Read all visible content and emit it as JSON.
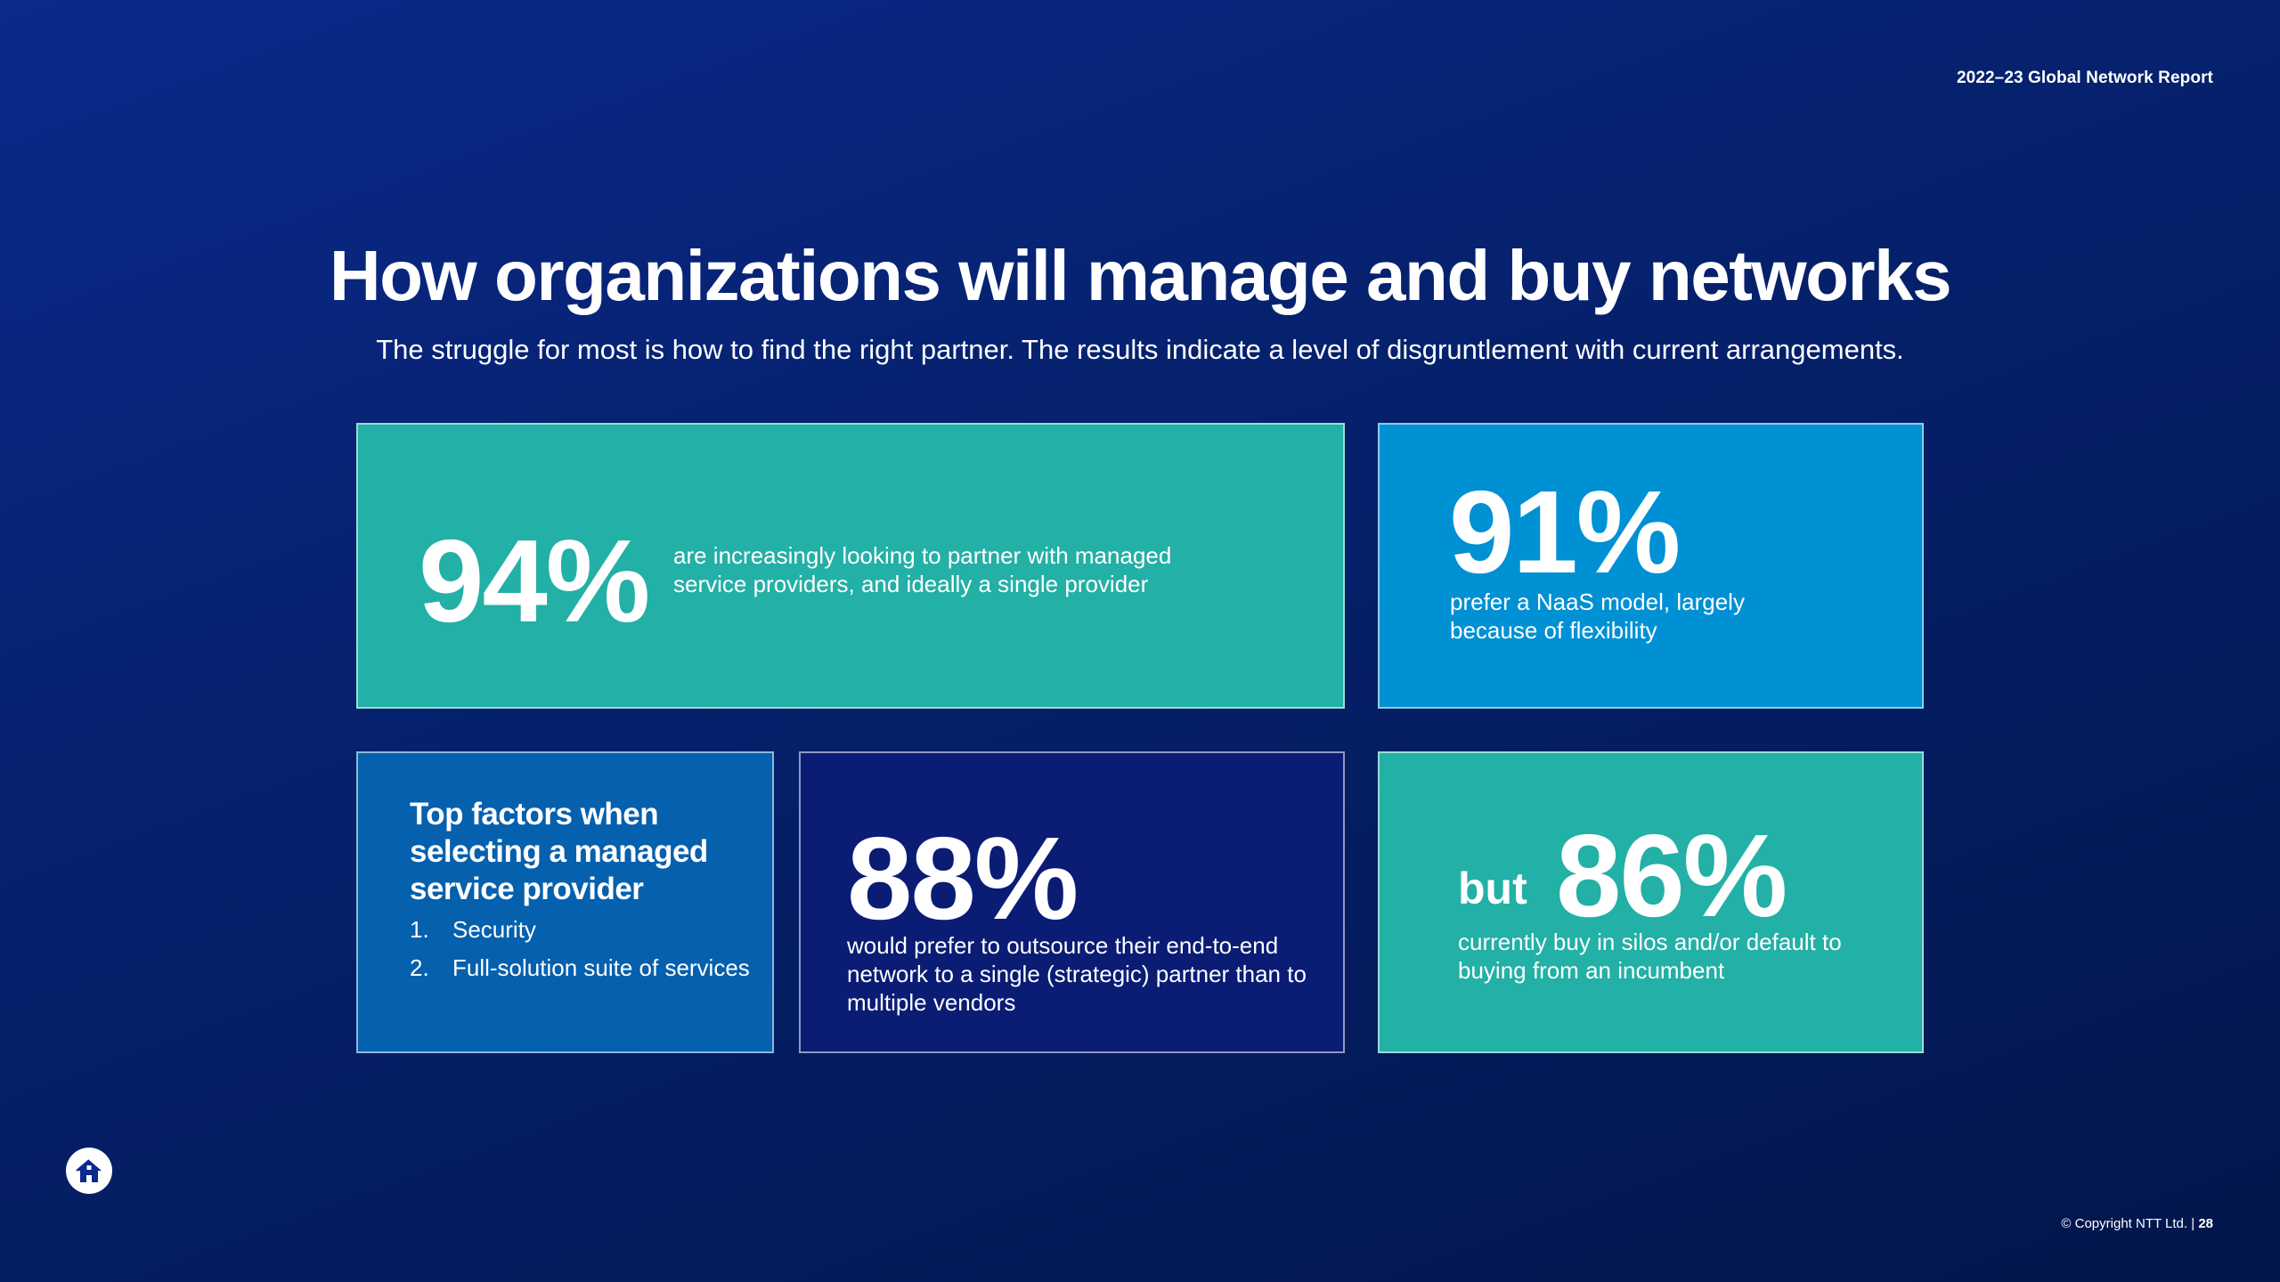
{
  "header": {
    "report_label": "2022–23 Global Network Report",
    "title": "How organizations will manage and buy networks",
    "subtitle": "The struggle for most is how to find the right partner. The results indicate a level of disgruntlement with current arrangements."
  },
  "cards": {
    "stat_94": {
      "value": "94%",
      "text": "are increasingly looking to partner with managed service providers, and ideally a single provider"
    },
    "stat_91": {
      "value": "91%",
      "text": "prefer a NaaS model, largely because of flexibility"
    },
    "factors": {
      "heading": "Top factors when selecting a managed service provider",
      "items": [
        {
          "num": "1.",
          "label": "Security"
        },
        {
          "num": "2.",
          "label": "Full-solution suite of services"
        }
      ]
    },
    "stat_88": {
      "value": "88%",
      "text": "would prefer to outsource their end-to-end network to a single (strategic) partner than to multiple vendors"
    },
    "stat_86": {
      "prefix": "but",
      "value": "86%",
      "text": "currently buy in silos and/or default to buying from an incumbent"
    }
  },
  "footer": {
    "copyright": "© Copyright NTT Ltd. |",
    "page_number": "28",
    "home_icon": "home-icon"
  },
  "colors": {
    "background": "#062270",
    "teal": "#23b0a6",
    "bright_blue": "#0090d4",
    "mid_blue": "#0560ae",
    "navy": "#0a1c74"
  }
}
